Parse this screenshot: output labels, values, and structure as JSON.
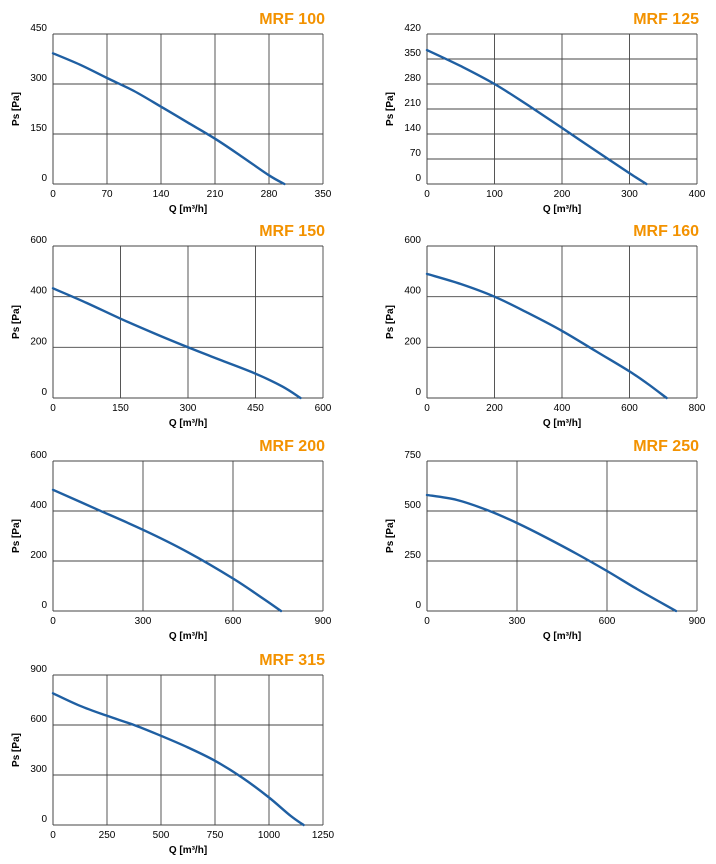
{
  "colors": {
    "title": "#F39200",
    "curve": "#1F5FA2",
    "grid": "#444444",
    "text": "#000000"
  },
  "chart_data": [
    {
      "type": "line",
      "title": "MRF 100",
      "xlabel": "Q [m³/h]",
      "ylabel": "Ps [Pa]",
      "xlim": [
        0,
        350
      ],
      "ylim": [
        0,
        450
      ],
      "xticks": [
        0,
        70,
        140,
        210,
        280,
        350
      ],
      "yticks": [
        0,
        150,
        300,
        450
      ],
      "grid": true,
      "series": [
        {
          "points": [
            [
              0,
              392
            ],
            [
              35,
              358
            ],
            [
              70,
              318
            ],
            [
              105,
              279
            ],
            [
              140,
              232
            ],
            [
              175,
              184
            ],
            [
              210,
              136
            ],
            [
              245,
              82
            ],
            [
              280,
              26
            ],
            [
              300,
              0
            ]
          ]
        }
      ]
    },
    {
      "type": "line",
      "title": "MRF 125",
      "xlabel": "Q [m³/h]",
      "ylabel": "Ps [Pa]",
      "xlim": [
        0,
        400
      ],
      "ylim": [
        0,
        420
      ],
      "xticks": [
        0,
        100,
        200,
        300,
        400
      ],
      "yticks": [
        0,
        70,
        140,
        210,
        280,
        350,
        420
      ],
      "grid": true,
      "series": [
        {
          "points": [
            [
              0,
              375
            ],
            [
              50,
              330
            ],
            [
              100,
              280
            ],
            [
              150,
              220
            ],
            [
              200,
              157
            ],
            [
              250,
              93
            ],
            [
              300,
              30
            ],
            [
              325,
              0
            ]
          ]
        }
      ]
    },
    {
      "type": "line",
      "title": "MRF 150",
      "xlabel": "Q [m³/h]",
      "ylabel": "Ps [Pa]",
      "xlim": [
        0,
        600
      ],
      "ylim": [
        0,
        600
      ],
      "xticks": [
        0,
        150,
        300,
        450,
        600
      ],
      "yticks": [
        0,
        200,
        400,
        600
      ],
      "grid": true,
      "series": [
        {
          "points": [
            [
              0,
              433
            ],
            [
              75,
              375
            ],
            [
              150,
              313
            ],
            [
              225,
              255
            ],
            [
              300,
              200
            ],
            [
              375,
              148
            ],
            [
              450,
              96
            ],
            [
              510,
              45
            ],
            [
              550,
              0
            ]
          ]
        }
      ]
    },
    {
      "type": "line",
      "title": "MRF 160",
      "xlabel": "Q [m³/h]",
      "ylabel": "Ps [Pa]",
      "xlim": [
        0,
        800
      ],
      "ylim": [
        0,
        600
      ],
      "xticks": [
        0,
        200,
        400,
        600,
        800
      ],
      "yticks": [
        0,
        200,
        400,
        600
      ],
      "grid": true,
      "series": [
        {
          "points": [
            [
              0,
              490
            ],
            [
              100,
              450
            ],
            [
              200,
              400
            ],
            [
              300,
              335
            ],
            [
              400,
              265
            ],
            [
              500,
              185
            ],
            [
              600,
              105
            ],
            [
              660,
              50
            ],
            [
              710,
              0
            ]
          ]
        }
      ]
    },
    {
      "type": "line",
      "title": "MRF 200",
      "xlabel": "Q [m³/h]",
      "ylabel": "Ps [Pa]",
      "xlim": [
        0,
        900
      ],
      "ylim": [
        0,
        600
      ],
      "xticks": [
        0,
        300,
        600,
        900
      ],
      "yticks": [
        0,
        200,
        400,
        600
      ],
      "grid": true,
      "series": [
        {
          "points": [
            [
              0,
              485
            ],
            [
              150,
              405
            ],
            [
              300,
              325
            ],
            [
              450,
              235
            ],
            [
              600,
              130
            ],
            [
              700,
              50
            ],
            [
              760,
              0
            ]
          ]
        }
      ]
    },
    {
      "type": "line",
      "title": "MRF 250",
      "xlabel": "Q [m³/h]",
      "ylabel": "Ps [Pa]",
      "xlim": [
        0,
        900
      ],
      "ylim": [
        0,
        750
      ],
      "xticks": [
        0,
        300,
        600,
        900
      ],
      "yticks": [
        0,
        250,
        500,
        750
      ],
      "grid": true,
      "series": [
        {
          "points": [
            [
              0,
              580
            ],
            [
              100,
              555
            ],
            [
              200,
              505
            ],
            [
              300,
              440
            ],
            [
              400,
              365
            ],
            [
              500,
              285
            ],
            [
              600,
              200
            ],
            [
              700,
              110
            ],
            [
              830,
              0
            ]
          ]
        }
      ]
    },
    {
      "type": "line",
      "title": "MRF 315",
      "xlabel": "Q [m³/h]",
      "ylabel": "Ps [Pa]",
      "xlim": [
        0,
        1250
      ],
      "ylim": [
        0,
        900
      ],
      "xticks": [
        0,
        250,
        500,
        750,
        1000,
        1250
      ],
      "yticks": [
        0,
        300,
        600,
        900
      ],
      "grid": true,
      "series": [
        {
          "points": [
            [
              0,
              790
            ],
            [
              125,
              715
            ],
            [
              250,
              655
            ],
            [
              375,
              600
            ],
            [
              500,
              535
            ],
            [
              625,
              465
            ],
            [
              750,
              385
            ],
            [
              875,
              285
            ],
            [
              1000,
              165
            ],
            [
              1100,
              55
            ],
            [
              1160,
              0
            ]
          ]
        }
      ]
    }
  ]
}
